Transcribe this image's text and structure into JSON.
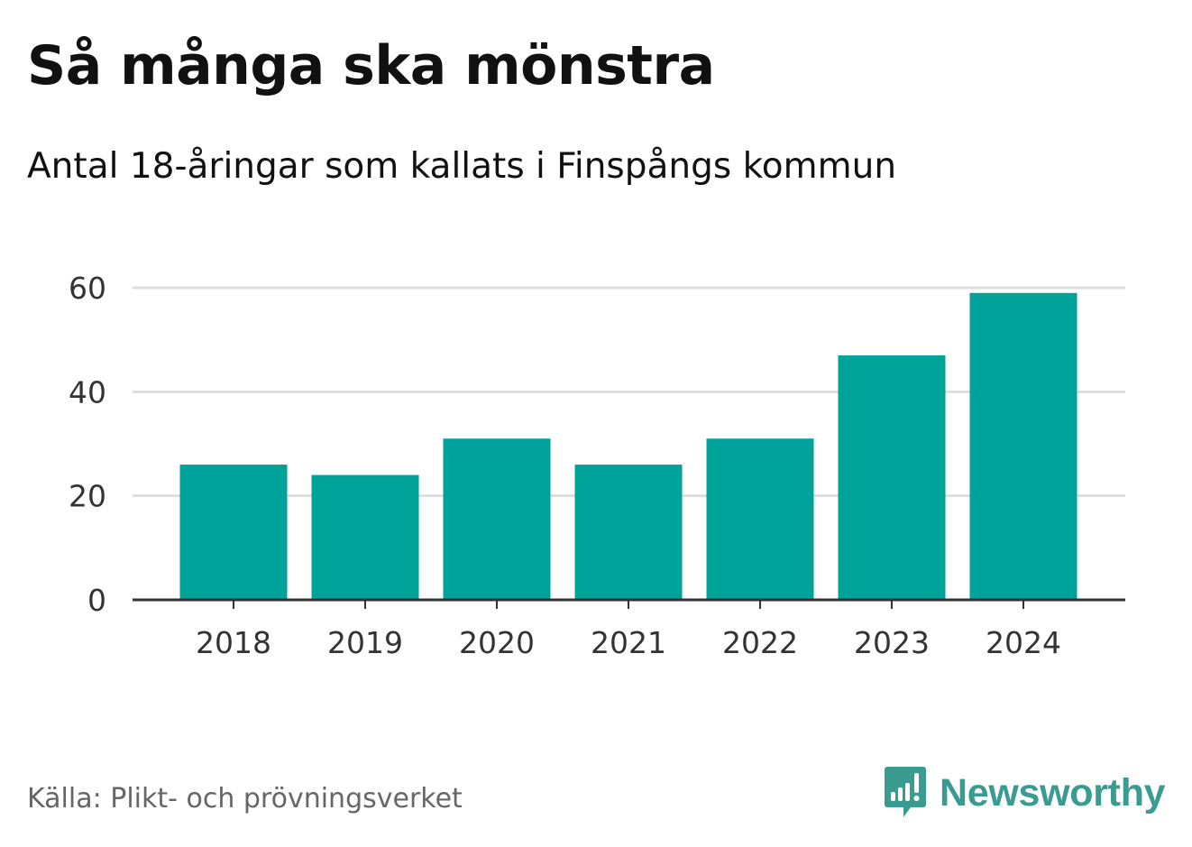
{
  "title": "Så många ska mönstra",
  "subtitle": "Antal 18-åringar som kallats i Finspångs kommun",
  "source": "Källa: Plikt- och prövningsverket",
  "brand": {
    "name": "Newsworthy",
    "icon": "newsworthy-logo-icon",
    "color": "#3a9b90"
  },
  "colors": {
    "bar": "#00a39a",
    "grid": "#dddddd",
    "axis": "#333333"
  },
  "chart_data": {
    "type": "bar",
    "title": "Så många ska mönstra",
    "subtitle": "Antal 18-åringar som kallats i Finspångs kommun",
    "categories": [
      "2018",
      "2019",
      "2020",
      "2021",
      "2022",
      "2023",
      "2024"
    ],
    "values": [
      26,
      24,
      31,
      26,
      31,
      47,
      59
    ],
    "xlabel": "",
    "ylabel": "",
    "ylim": [
      0,
      60
    ],
    "yticks": [
      0,
      20,
      40,
      60
    ],
    "grid": true
  }
}
